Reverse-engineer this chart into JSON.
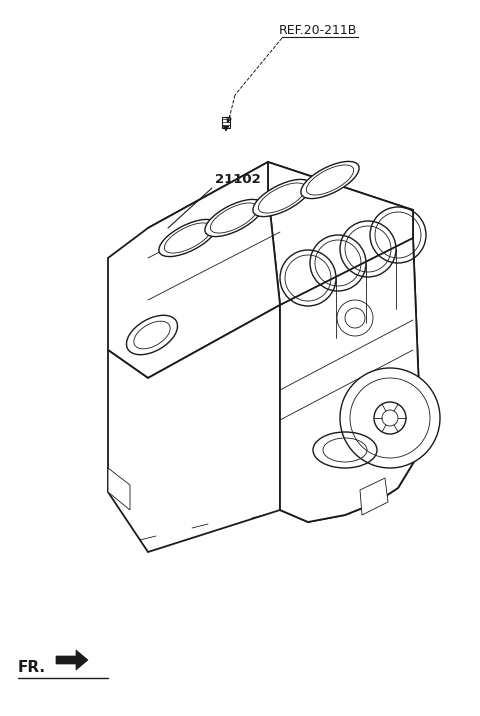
{
  "bg_color": "#ffffff",
  "line_color": "#1a1a1a",
  "label_ref": "REF.20-211B",
  "label_part": "21102",
  "label_fr": "FR.",
  "fig_width": 4.8,
  "fig_height": 7.16,
  "dpi": 100,
  "lw_main": 1.0,
  "lw_thin": 0.6,
  "lw_thick": 1.3
}
